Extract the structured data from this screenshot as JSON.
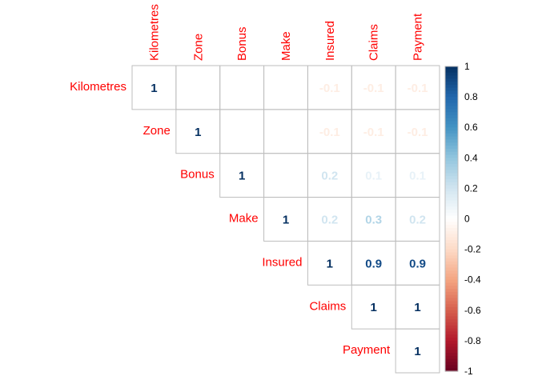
{
  "chart_data": {
    "type": "heatmap",
    "layout": "upper-triangle correlation matrix",
    "method": "number",
    "variables": [
      "Kilometres",
      "Zone",
      "Bonus",
      "Make",
      "Insured",
      "Claims",
      "Payment"
    ],
    "matrix": [
      [
        1,
        null,
        null,
        null,
        -0.1,
        -0.1,
        -0.1
      ],
      [
        null,
        1,
        null,
        null,
        -0.1,
        -0.1,
        -0.1
      ],
      [
        null,
        null,
        1,
        null,
        0.2,
        0.1,
        0.1
      ],
      [
        null,
        null,
        null,
        1,
        0.2,
        0.3,
        0.2
      ],
      [
        null,
        null,
        null,
        null,
        1,
        0.9,
        0.9
      ],
      [
        null,
        null,
        null,
        null,
        null,
        1,
        1
      ],
      [
        null,
        null,
        null,
        null,
        null,
        null,
        1
      ]
    ],
    "value_range": [
      -1,
      1
    ],
    "colorbar_ticks": [
      "1",
      "0.8",
      "0.6",
      "0.4",
      "0.2",
      "0",
      "-0.2",
      "-0.4",
      "-0.6",
      "-0.8",
      "-1"
    ],
    "label_color": "#ff0000",
    "colors": {
      "negative_end": "#67001f",
      "neutral": "#ffffff",
      "positive_end": "#053061",
      "grid": "#bebebe"
    }
  }
}
